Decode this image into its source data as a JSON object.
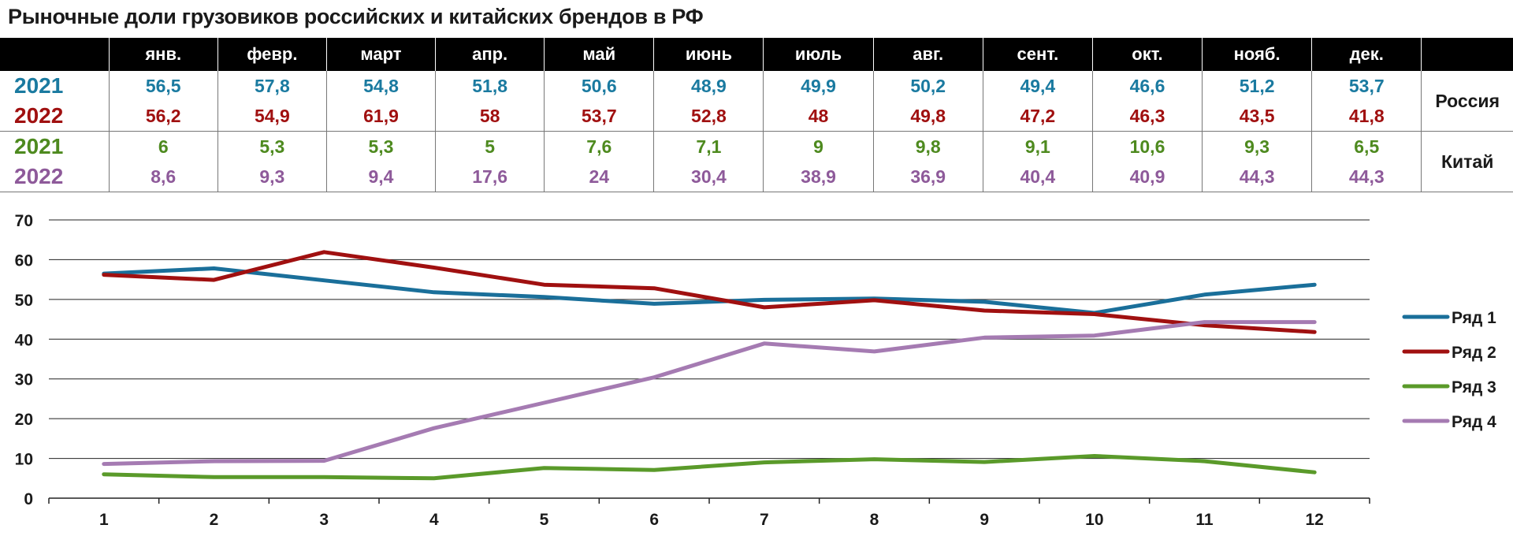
{
  "title": "Рыночные доли грузовиков российских и китайских брендов в РФ",
  "table": {
    "months": [
      "янв.",
      "февр.",
      "март",
      "апр.",
      "май",
      "июнь",
      "июль",
      "авг.",
      "сент.",
      "окт.",
      "нояб.",
      "дек."
    ],
    "rows": [
      {
        "year": "2021",
        "color": "#1a7aa0",
        "values": [
          "56,5",
          "57,8",
          "54,8",
          "51,8",
          "50,6",
          "48,9",
          "49,9",
          "50,2",
          "49,4",
          "46,6",
          "51,2",
          "53,7"
        ]
      },
      {
        "year": "2022",
        "color": "#a01010",
        "values": [
          "56,2",
          "54,9",
          "61,9",
          "58",
          "53,7",
          "52,8",
          "48",
          "49,8",
          "47,2",
          "46,3",
          "43,5",
          "41,8"
        ]
      },
      {
        "year": "2021",
        "color": "#4e8a1f",
        "values": [
          "6",
          "5,3",
          "5,3",
          "5",
          "7,6",
          "7,1",
          "9",
          "9,8",
          "9,1",
          "10,6",
          "9,3",
          "6,5"
        ]
      },
      {
        "year": "2022",
        "color": "#8e5a9a",
        "values": [
          "8,6",
          "9,3",
          "9,4",
          "17,6",
          "24",
          "30,4",
          "38,9",
          "36,9",
          "40,4",
          "40,9",
          "44,3",
          "44,3"
        ]
      }
    ],
    "groups": [
      "Россия",
      "Китай"
    ]
  },
  "chart_data": {
    "type": "line",
    "x": [
      1,
      2,
      3,
      4,
      5,
      6,
      7,
      8,
      9,
      10,
      11,
      12
    ],
    "ylim": [
      0,
      70
    ],
    "yticks": [
      0,
      10,
      20,
      30,
      40,
      50,
      60,
      70
    ],
    "grid": true,
    "legend": "right",
    "series": [
      {
        "name": "Ряд 1",
        "color": "#1a6f9a",
        "values": [
          56.5,
          57.8,
          54.8,
          51.8,
          50.6,
          48.9,
          49.9,
          50.2,
          49.4,
          46.6,
          51.2,
          53.7
        ]
      },
      {
        "name": "Ряд 2",
        "color": "#a01010",
        "values": [
          56.2,
          54.9,
          61.9,
          58,
          53.7,
          52.8,
          48,
          49.8,
          47.2,
          46.3,
          43.5,
          41.8
        ]
      },
      {
        "name": "Ряд 3",
        "color": "#5a9a2a",
        "values": [
          6,
          5.3,
          5.3,
          5,
          7.6,
          7.1,
          9,
          9.8,
          9.1,
          10.6,
          9.3,
          6.5
        ]
      },
      {
        "name": "Ряд 4",
        "color": "#a57bb2",
        "values": [
          8.6,
          9.3,
          9.4,
          17.6,
          24,
          30.4,
          38.9,
          36.9,
          40.4,
          40.9,
          44.3,
          44.3
        ]
      }
    ]
  }
}
